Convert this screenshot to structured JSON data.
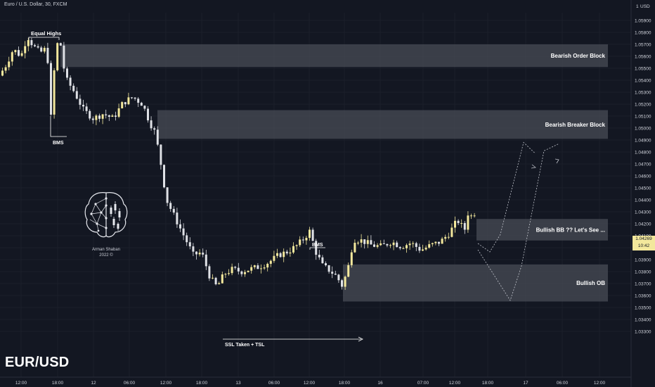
{
  "header": {
    "title": "Euro / U.S. Dollar, 30, FXCM"
  },
  "symbol": "EUR/USD",
  "watermark": {
    "name": "Arman Shaban",
    "year": "2022 ©"
  },
  "price_badge": {
    "price": "1.04269",
    "countdown": "10:42"
  },
  "colors": {
    "background": "#131722",
    "bull": "#f3e89c",
    "bear": "#dfe1e6",
    "zone": "#4a4d57",
    "text": "#d1d4dc",
    "grid": "#1b1f2a"
  },
  "chart_data": {
    "type": "candlestick",
    "title": "Euro / U.S. Dollar, 30, FXCM",
    "ylim": [
      1.0325,
      1.0605
    ],
    "y_ticks": [
      "1.05900",
      "1.05800",
      "1.05700",
      "1.05600",
      "1.05500",
      "1.05400",
      "1.05300",
      "1.05200",
      "1.05100",
      "1.05000",
      "1.04900",
      "1.04800",
      "1.04700",
      "1.04600",
      "1.04500",
      "1.04400",
      "1.04300",
      "1.04200",
      "1.04100",
      "1.04000",
      "1.03900",
      "1.03800",
      "1.03700",
      "1.03600",
      "1.03500",
      "1.03400",
      "1.03300"
    ],
    "y_unit_label": "USD",
    "y_unit_value": "1",
    "x_ticks": [
      "12:00",
      "18:00",
      "12",
      "06:00",
      "12:00",
      "18:00",
      "13",
      "06:00",
      "12:00",
      "18:00",
      "16",
      "07:00",
      "12:00",
      "18:00",
      "17",
      "06:00",
      "12:00"
    ],
    "current_price": 1.04269,
    "price_path": [
      [
        0,
        1.0542
      ],
      [
        12,
        1.0553
      ],
      [
        22,
        1.0566
      ],
      [
        33,
        1.056
      ],
      [
        42,
        1.0577
      ],
      [
        50,
        1.0569
      ],
      [
        60,
        1.0563
      ],
      [
        70,
        1.0567
      ],
      [
        76,
        1.0505
      ],
      [
        82,
        1.0566
      ],
      [
        88,
        1.0575
      ],
      [
        96,
        1.0542
      ],
      [
        108,
        1.0531
      ],
      [
        122,
        1.0515
      ],
      [
        136,
        1.0508
      ],
      [
        150,
        1.0512
      ],
      [
        164,
        1.0508
      ],
      [
        178,
        1.0521
      ],
      [
        192,
        1.0526
      ],
      [
        206,
        1.052
      ],
      [
        216,
        1.0505
      ],
      [
        224,
        1.0496
      ],
      [
        232,
        1.047
      ],
      [
        240,
        1.044
      ],
      [
        248,
        1.043
      ],
      [
        258,
        1.0418
      ],
      [
        268,
        1.0406
      ],
      [
        278,
        1.0394
      ],
      [
        290,
        1.0396
      ],
      [
        302,
        1.0375
      ],
      [
        312,
        1.0367
      ],
      [
        322,
        1.0378
      ],
      [
        334,
        1.0382
      ],
      [
        346,
        1.038
      ],
      [
        358,
        1.0382
      ],
      [
        372,
        1.0384
      ],
      [
        386,
        1.0388
      ],
      [
        400,
        1.0394
      ],
      [
        414,
        1.0397
      ],
      [
        426,
        1.0402
      ],
      [
        436,
        1.0408
      ],
      [
        444,
        1.0414
      ],
      [
        452,
        1.0397
      ],
      [
        462,
        1.0385
      ],
      [
        472,
        1.0381
      ],
      [
        482,
        1.0376
      ],
      [
        490,
        1.0368
      ],
      [
        498,
        1.0382
      ],
      [
        506,
        1.0407
      ],
      [
        518,
        1.0406
      ],
      [
        532,
        1.0402
      ],
      [
        546,
        1.0401
      ],
      [
        560,
        1.0405
      ],
      [
        574,
        1.0401
      ],
      [
        588,
        1.0404
      ],
      [
        602,
        1.0398
      ],
      [
        616,
        1.0402
      ],
      [
        630,
        1.0405
      ],
      [
        642,
        1.0412
      ],
      [
        654,
        1.0423
      ],
      [
        664,
        1.0415
      ],
      [
        672,
        1.0425
      ],
      [
        678,
        1.0427
      ]
    ],
    "zones": [
      {
        "label": "Bearish Order Block",
        "from": 1.0551,
        "to": 1.057,
        "start": "18:00"
      },
      {
        "label": "Bearish Breaker Block",
        "from": 1.0491,
        "to": 1.0515,
        "start": "12:00"
      },
      {
        "label": "Bullish BB ?? Let's See ...",
        "from": 1.0406,
        "to": 1.0424,
        "start": "12:00"
      },
      {
        "label": "Bullish OB",
        "from": 1.0355,
        "to": 1.0386,
        "start": "18:00"
      }
    ],
    "annotations": [
      "Equal Highs",
      "BMS",
      "BMS",
      "SSL Taken + TSL"
    ],
    "projection": {
      "style": "dotted",
      "targets": [
        1.0488,
        1.0488
      ]
    }
  }
}
